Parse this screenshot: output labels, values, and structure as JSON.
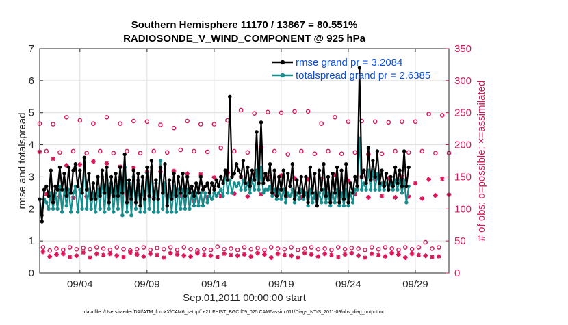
{
  "chart_data": {
    "type": "line",
    "title": "Southern Hemisphere 11170 / 13867 = 80.551%",
    "subtitle": "RADIOSONDE_V_WIND_COMPONENT @ 925 hPa",
    "xlabel": "Sep.01,2011 00:00:00 start",
    "ylabel": "rmse and totalspread",
    "y2label": "# of obs: o=possible; ×=assimilated",
    "footer": "data file: /Users/raeder/DAI/ATM_forcXX/CAM6_setup/f.e21.FHIST_BGC.f09_025.CAM6assim.011/Diags_NTrS_2011-09/obs_diag_output.nc",
    "x_range": [
      1,
      31.5
    ],
    "ylim": [
      0,
      7
    ],
    "y2lim": [
      0,
      350
    ],
    "x_ticks": [
      4,
      9,
      14,
      19,
      24,
      29
    ],
    "x_tick_labels": [
      "09/04",
      "09/09",
      "09/14",
      "09/19",
      "09/24",
      "09/29"
    ],
    "y_ticks": [
      0,
      1,
      2,
      3,
      4,
      5,
      6,
      7
    ],
    "y_tick_labels": [
      "0",
      "1",
      "2",
      "3",
      "4",
      "5",
      "6",
      "7"
    ],
    "y2_ticks": [
      0,
      50,
      100,
      150,
      200,
      250,
      300,
      350
    ],
    "y2_tick_labels": [
      "0",
      "50",
      "100",
      "150",
      "200",
      "250",
      "300",
      "350"
    ],
    "colors": {
      "rmse": "#000000",
      "spread": "#198c8c",
      "obs": "#d6175a",
      "legend_text": "#0a4fe0",
      "axes": "#262626",
      "grid": "#dedede"
    },
    "series": [
      {
        "name": "rmse grand pr = 3.2084",
        "values": [
          2.3,
          1.6,
          2.6,
          2.7,
          2.4,
          3.2,
          2.2,
          2.7,
          2.6,
          3.3,
          2.6,
          3.1,
          2.4,
          3.3,
          2.5,
          3.2,
          3.4,
          2.7,
          3.2,
          2.5,
          3.6,
          2.6,
          3.1,
          2.3,
          2.8,
          2.3,
          3.0,
          2.4,
          3.2,
          2.5,
          3.3,
          2.2,
          3.0,
          2.4,
          3.1,
          2.4,
          3.3,
          2.5,
          3.7,
          2.2,
          2.9,
          2.3,
          3.2,
          2.2,
          3.1,
          2.1,
          3.0,
          2.3,
          3.3,
          2.4,
          3.5,
          2.3,
          2.9,
          2.3,
          3.3,
          2.5,
          3.4,
          2.1,
          2.9,
          2.3,
          3.1,
          2.4,
          3.0,
          2.5,
          3.1,
          2.4,
          3.0,
          2.5,
          2.7,
          2.4,
          2.8,
          2.5,
          3.0,
          2.6,
          2.7,
          2.8,
          2.5,
          2.8,
          2.6,
          2.9,
          2.7,
          3.0,
          2.8,
          3.2,
          2.9,
          5.5,
          3.0,
          3.1,
          3.4,
          3.2,
          3.0,
          3.5,
          2.8,
          3.3,
          2.7,
          3.2,
          2.9,
          4.4,
          2.8,
          4.7,
          2.8,
          3.1,
          2.9,
          3.4,
          2.5,
          3.2,
          2.4,
          3.0,
          2.6,
          3.2,
          2.4,
          3.1,
          2.7,
          3.4,
          2.3,
          2.9,
          2.5,
          3.0,
          2.4,
          3.0,
          2.2,
          3.3,
          2.5,
          3.1,
          2.1,
          3.2,
          2.6,
          3.4,
          2.4,
          3.0,
          2.2,
          3.1,
          2.5,
          3.3,
          2.2,
          3.2,
          2.3,
          3.4,
          2.2,
          2.8,
          2.5,
          3.0,
          2.7,
          6.4,
          3.0,
          3.2,
          2.8,
          3.9,
          2.9,
          3.5,
          3.0,
          3.8,
          2.8,
          3.2,
          2.7,
          3.1,
          2.6,
          3.0,
          2.7,
          3.3,
          2.8,
          3.2,
          2.7,
          3.8,
          2.7,
          3.3
        ]
      },
      {
        "name": "totalspread grand pr = 2.6385",
        "values": [
          2.3,
          1.8,
          2.3,
          2.2,
          2.0,
          2.5,
          2.0,
          2.5,
          2.0,
          2.7,
          1.9,
          2.6,
          2.1,
          2.6,
          1.9,
          2.5,
          2.7,
          1.9,
          2.6,
          2.0,
          3.6,
          2.0,
          2.6,
          2.0,
          2.5,
          1.9,
          2.6,
          2.0,
          3.0,
          1.9,
          2.9,
          2.0,
          2.8,
          1.9,
          2.7,
          2.0,
          3.0,
          1.8,
          3.3,
          1.9,
          2.8,
          1.8,
          3.0,
          2.0,
          2.9,
          1.9,
          2.7,
          1.9,
          3.1,
          2.0,
          3.3,
          1.9,
          2.8,
          1.9,
          3.5,
          2.0,
          2.8,
          1.9,
          2.6,
          1.9,
          2.7,
          1.9,
          2.6,
          2.0,
          2.6,
          2.0,
          2.6,
          2.0,
          2.5,
          2.1,
          2.5,
          2.1,
          2.5,
          2.1,
          2.5,
          2.2,
          2.4,
          2.3,
          2.5,
          2.4,
          2.5,
          2.6,
          2.4,
          3.2,
          2.5,
          2.9,
          2.5,
          2.8,
          2.7,
          2.8,
          2.6,
          2.9,
          2.6,
          2.8,
          2.5,
          2.9,
          2.6,
          3.2,
          2.6,
          3.3,
          2.5,
          2.6,
          2.6,
          2.7,
          2.4,
          2.6,
          2.3,
          2.6,
          2.3,
          2.6,
          2.2,
          2.5,
          2.4,
          2.6,
          2.2,
          2.5,
          2.3,
          2.6,
          2.3,
          2.5,
          2.1,
          2.6,
          2.2,
          2.5,
          2.1,
          2.5,
          2.2,
          2.6,
          2.2,
          2.5,
          2.1,
          2.5,
          2.2,
          2.6,
          2.1,
          2.5,
          2.1,
          2.6,
          2.1,
          2.5,
          2.2,
          2.6,
          2.6,
          4.2,
          2.6,
          2.8,
          2.6,
          3.2,
          2.6,
          3.2,
          2.6,
          3.1,
          2.6,
          2.8,
          2.6,
          2.8,
          2.6,
          2.8,
          2.6,
          2.9,
          2.6,
          2.9,
          2.5,
          2.9,
          2.2,
          2.7
        ]
      }
    ],
    "obs_possible": {
      "name": "o=possible",
      "groups": [
        {
          "first_day": 1.0,
          "step": 1.0,
          "values": [
            233,
            232,
            243,
            238,
            233,
            243,
            233,
            237,
            236,
            231,
            226,
            237,
            232,
            232,
            238,
            254,
            249,
            251,
            250,
            252,
            252,
            233,
            243,
            236,
            237,
            236,
            235,
            236,
            236,
            248,
            246
          ]
        },
        {
          "first_day": 1.5,
          "step": 1.0,
          "values": [
            190,
            188,
            190,
            187,
            190,
            187,
            190,
            187,
            190,
            188,
            192,
            190,
            189,
            195,
            190,
            188,
            196,
            190,
            185,
            190,
            186,
            190,
            186,
            188,
            185,
            186,
            190,
            188,
            190,
            187,
            187
          ]
        },
        {
          "first_day": 1.25,
          "step": 0.5,
          "values": [
            40,
            35,
            38,
            36,
            40,
            37,
            39,
            37,
            40,
            38,
            36,
            40,
            37,
            35,
            37,
            40,
            36,
            39,
            37,
            40,
            36,
            40,
            37,
            35,
            37,
            36,
            41,
            37,
            38,
            36,
            40,
            37,
            39,
            36,
            40,
            38,
            37,
            40,
            36,
            38,
            40,
            37,
            38,
            36,
            40,
            37,
            39,
            38,
            36,
            40,
            37,
            40,
            38,
            36,
            40,
            37,
            40,
            48,
            38,
            40
          ]
        }
      ]
    },
    "obs_assimilated": {
      "name": "×=assimilated",
      "groups": [
        {
          "first_day": 1.0,
          "step": 1.0,
          "values": [
            189,
            178,
            168,
            169,
            174,
            171,
            166,
            164,
            157,
            158,
            159,
            155,
            154,
            149,
            156,
            150,
            154,
            150,
            152,
            148,
            146,
            147,
            153,
            144,
            150,
            146,
            148,
            150,
            140,
            146,
            147
          ]
        },
        {
          "first_day": 1.5,
          "step": 1.0,
          "values": [
            123,
            119,
            117,
            119,
            125,
            125,
            122,
            121,
            117,
            120,
            121,
            112,
            118,
            120,
            124,
            119,
            123,
            124,
            121,
            118,
            118,
            121,
            122,
            123,
            118,
            120,
            118,
            119,
            116,
            121,
            122
          ]
        },
        {
          "first_day": 1.25,
          "step": 0.5,
          "values": [
            33,
            26,
            29,
            30,
            25,
            27,
            32,
            24,
            30,
            28,
            30,
            27,
            25,
            32,
            29,
            26,
            30,
            28,
            24,
            31,
            29,
            27,
            26,
            31,
            28,
            27,
            25,
            30,
            28,
            27,
            29,
            26,
            31,
            29,
            24,
            30,
            28,
            27,
            24,
            31,
            29,
            26,
            30,
            28,
            25,
            29,
            31,
            27,
            24,
            30,
            28,
            26,
            31,
            29,
            24,
            30,
            28,
            27,
            25,
            26
          ]
        }
      ]
    },
    "legend_position": "top-right"
  }
}
